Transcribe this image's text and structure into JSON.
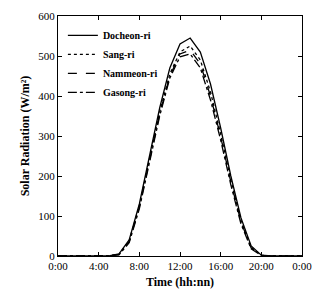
{
  "chart_data": {
    "type": "line",
    "x_title": "Time (hh:nn)",
    "y_title": "Solar Radiation (W/m²)",
    "x": [
      0,
      1,
      2,
      3,
      4,
      5,
      6,
      7,
      8,
      9,
      10,
      11,
      12,
      13,
      14,
      15,
      16,
      17,
      18,
      19,
      20,
      21,
      22,
      23,
      24
    ],
    "series": [
      {
        "name": "Docheon-ri",
        "color": "#000000",
        "line_style": "solid",
        "values": [
          0,
          0,
          0,
          0,
          0,
          0,
          5,
          40,
          130,
          250,
          370,
          470,
          530,
          545,
          510,
          430,
          320,
          200,
          95,
          25,
          2,
          0,
          0,
          0,
          0
        ]
      },
      {
        "name": "Sang-ri",
        "color": "#000000",
        "line_style": "dot",
        "values": [
          0,
          0,
          0,
          0,
          0,
          0,
          4,
          38,
          125,
          240,
          360,
          455,
          510,
          525,
          490,
          410,
          305,
          190,
          88,
          22,
          2,
          0,
          0,
          0,
          0
        ]
      },
      {
        "name": "Nammeon-ri",
        "color": "#000000",
        "line_style": "dash",
        "values": [
          0,
          0,
          0,
          0,
          0,
          0,
          4,
          36,
          122,
          235,
          355,
          450,
          505,
          515,
          480,
          400,
          298,
          185,
          85,
          20,
          1,
          0,
          0,
          0,
          0
        ]
      },
      {
        "name": "Gasong-ri",
        "color": "#000000",
        "line_style": "dashdot",
        "values": [
          0,
          0,
          0,
          0,
          0,
          0,
          3,
          33,
          118,
          230,
          350,
          445,
          498,
          505,
          470,
          390,
          290,
          178,
          80,
          18,
          1,
          0,
          0,
          0,
          0
        ]
      }
    ],
    "xlim": [
      0,
      24
    ],
    "xticks": [
      {
        "value": 0,
        "label": "0:00"
      },
      {
        "value": 4,
        "label": "4:00"
      },
      {
        "value": 8,
        "label": "8:00"
      },
      {
        "value": 12,
        "label": "12:00"
      },
      {
        "value": 16,
        "label": "16:00"
      },
      {
        "value": 20,
        "label": "20:00"
      },
      {
        "value": 24,
        "label": "0:00"
      }
    ],
    "ylim": [
      0,
      600
    ],
    "yticks": [
      0,
      100,
      200,
      300,
      400,
      500,
      600
    ],
    "grid": false,
    "legend": "top left"
  }
}
